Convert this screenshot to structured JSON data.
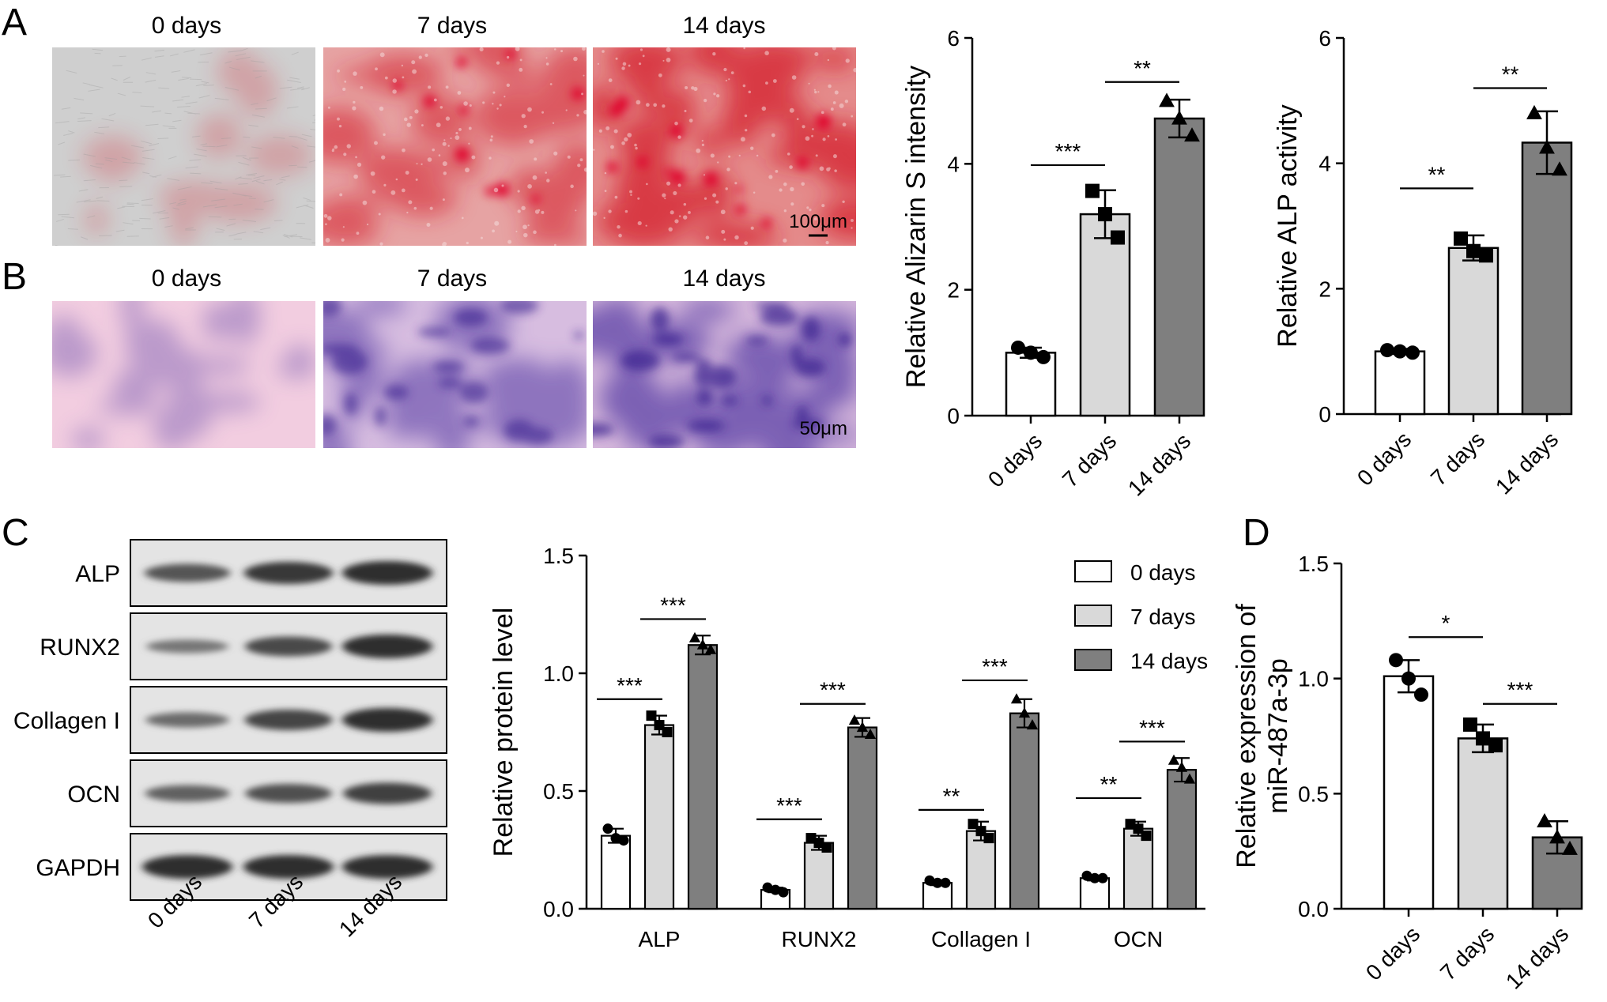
{
  "panel_letters": [
    "A",
    "B",
    "C",
    "D"
  ],
  "micro": {
    "rowA": {
      "headers": [
        "0 days",
        "7 days",
        "14 days"
      ],
      "scalebar": "100μm",
      "colors": {
        "bg0": "#cfcfcf",
        "bg1": "#e6a3a3",
        "bg2": "#e48b8b",
        "stain": "#d41a2c"
      },
      "stain_level": [
        0.0,
        0.55,
        0.85
      ]
    },
    "rowB": {
      "headers": [
        "0 days",
        "7 days",
        "14 days"
      ],
      "scalebar": "50μm",
      "colors": {
        "bg0": "#f2cde0",
        "bg1": "#d7bde0",
        "bg2": "#d4b6db",
        "stain": "#5a3fa6"
      },
      "stain_level": [
        0.2,
        0.6,
        0.85
      ]
    }
  },
  "blot": {
    "proteins": [
      "ALP",
      "RUNX2",
      "Collagen I",
      "OCN",
      "GAPDH"
    ],
    "lanes": [
      "0 days",
      "7 days",
      "14 days"
    ],
    "band_strength": [
      [
        0.55,
        0.8,
        0.9
      ],
      [
        0.25,
        0.65,
        0.9
      ],
      [
        0.35,
        0.7,
        0.9
      ],
      [
        0.45,
        0.6,
        0.75
      ],
      [
        0.9,
        0.9,
        0.9
      ]
    ]
  },
  "chart_data": [
    {
      "type": "bar",
      "id": "alizarin",
      "categories": [
        "0 days",
        "7 days",
        "14 days"
      ],
      "values": [
        1.0,
        3.2,
        4.72
      ],
      "errors": [
        0.08,
        0.38,
        0.3
      ],
      "points": [
        [
          1.08,
          1.0,
          0.93
        ],
        [
          3.57,
          3.2,
          2.83
        ],
        [
          5.0,
          4.72,
          4.45
        ]
      ],
      "colors": [
        "#ffffff",
        "#d9d9d9",
        "#7f7f7f"
      ],
      "markers": [
        "circle",
        "square",
        "triangle"
      ],
      "ylabel": "Relative Alizarin S intensity",
      "ylim": [
        0,
        6
      ],
      "yticks": [
        "0",
        "2",
        "4",
        "6"
      ],
      "significance": [
        {
          "from": 0,
          "to": 1,
          "label": "***",
          "y": 3.98
        },
        {
          "from": 1,
          "to": 2,
          "label": "**",
          "y": 5.3
        }
      ]
    },
    {
      "type": "bar",
      "id": "alp_activity",
      "categories": [
        "0 days",
        "7 days",
        "14 days"
      ],
      "values": [
        1.0,
        2.65,
        4.33
      ],
      "errors": [
        0.04,
        0.2,
        0.5
      ],
      "points": [
        [
          1.02,
          1.0,
          0.98
        ],
        [
          2.8,
          2.6,
          2.53
        ],
        [
          4.8,
          4.25,
          3.9
        ]
      ],
      "colors": [
        "#ffffff",
        "#d9d9d9",
        "#7f7f7f"
      ],
      "markers": [
        "circle",
        "square",
        "triangle"
      ],
      "ylabel": "Relative ALP activity",
      "ylim": [
        0,
        6
      ],
      "yticks": [
        "0",
        "2",
        "4",
        "6"
      ],
      "significance": [
        {
          "from": 0,
          "to": 1,
          "label": "**",
          "y": 3.6
        },
        {
          "from": 1,
          "to": 2,
          "label": "**",
          "y": 5.2
        }
      ]
    },
    {
      "type": "bar",
      "id": "protein",
      "categories": [
        "ALP",
        "RUNX2",
        "Collagen I",
        "OCN"
      ],
      "series": [
        {
          "name": "0 days",
          "color": "#ffffff",
          "marker": "circle",
          "values": [
            0.31,
            0.08,
            0.11,
            0.13
          ],
          "errors": [
            0.03,
            0.01,
            0.01,
            0.01
          ],
          "points": [
            [
              0.34,
              0.3,
              0.29
            ],
            [
              0.09,
              0.08,
              0.07
            ],
            [
              0.12,
              0.11,
              0.11
            ],
            [
              0.14,
              0.13,
              0.13
            ]
          ]
        },
        {
          "name": "7 days",
          "color": "#d9d9d9",
          "marker": "square",
          "values": [
            0.78,
            0.28,
            0.33,
            0.34
          ],
          "errors": [
            0.04,
            0.03,
            0.04,
            0.03
          ],
          "points": [
            [
              0.82,
              0.78,
              0.75
            ],
            [
              0.3,
              0.28,
              0.26
            ],
            [
              0.36,
              0.33,
              0.3
            ],
            [
              0.36,
              0.34,
              0.31
            ]
          ]
        },
        {
          "name": "14 days",
          "color": "#7f7f7f",
          "marker": "triangle",
          "values": [
            1.12,
            0.77,
            0.83,
            0.59
          ],
          "errors": [
            0.04,
            0.04,
            0.06,
            0.05
          ],
          "points": [
            [
              1.15,
              1.12,
              1.1
            ],
            [
              0.8,
              0.77,
              0.74
            ],
            [
              0.89,
              0.83,
              0.78
            ],
            [
              0.63,
              0.6,
              0.55
            ]
          ]
        }
      ],
      "ylabel": "Relative protein level",
      "ylim": [
        0,
        1.5
      ],
      "yticks": [
        "0.0",
        "0.5",
        "1.0",
        "1.5"
      ],
      "legend": "top-right",
      "significance": [
        {
          "category": 0,
          "from": 0,
          "to": 1,
          "label": "***",
          "y": 0.89
        },
        {
          "category": 0,
          "from": 1,
          "to": 2,
          "label": "***",
          "y": 1.23
        },
        {
          "category": 1,
          "from": 0,
          "to": 1,
          "label": "***",
          "y": 0.38
        },
        {
          "category": 1,
          "from": 1,
          "to": 2,
          "label": "***",
          "y": 0.87
        },
        {
          "category": 2,
          "from": 0,
          "to": 1,
          "label": "**",
          "y": 0.42
        },
        {
          "category": 2,
          "from": 1,
          "to": 2,
          "label": "***",
          "y": 0.97
        },
        {
          "category": 3,
          "from": 0,
          "to": 1,
          "label": "**",
          "y": 0.47
        },
        {
          "category": 3,
          "from": 1,
          "to": 2,
          "label": "***",
          "y": 0.71
        }
      ]
    },
    {
      "type": "bar",
      "id": "mir487",
      "categories": [
        "0 days",
        "7 days",
        "14 days"
      ],
      "values": [
        1.01,
        0.74,
        0.31
      ],
      "errors": [
        0.07,
        0.06,
        0.07
      ],
      "points": [
        [
          1.08,
          1.0,
          0.93
        ],
        [
          0.8,
          0.74,
          0.71
        ],
        [
          0.38,
          0.31,
          0.26
        ]
      ],
      "colors": [
        "#ffffff",
        "#d9d9d9",
        "#7f7f7f"
      ],
      "markers": [
        "circle",
        "square",
        "triangle"
      ],
      "ylabel": [
        "Relative expression of",
        "miR-487a-3p"
      ],
      "ylim": [
        0,
        1.5
      ],
      "yticks": [
        "0.0",
        "0.5",
        "1.0",
        "1.5"
      ],
      "significance": [
        {
          "from": 0,
          "to": 1,
          "label": "*",
          "y": 1.18
        },
        {
          "from": 1,
          "to": 2,
          "label": "***",
          "y": 0.89
        }
      ]
    }
  ]
}
